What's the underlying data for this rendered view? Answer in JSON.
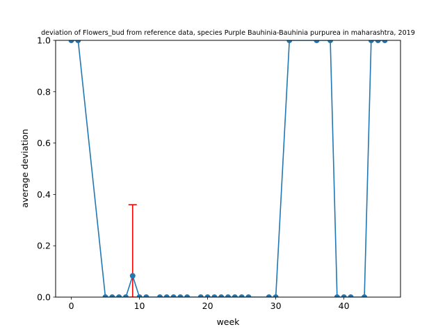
{
  "chart_data": {
    "type": "line",
    "title": "deviation of Flowers_bud from reference data, species Purple Bauhinia-Bauhinia purpurea in maharashtra, 2019",
    "xlabel": "week",
    "ylabel": "average deviation",
    "xlim": [
      -2.3,
      48.3
    ],
    "ylim": [
      0,
      1.0
    ],
    "xticks": [
      0,
      10,
      20,
      30,
      40
    ],
    "xtick_labels": [
      "0",
      "10",
      "20",
      "30",
      "40"
    ],
    "yticks": [
      0.0,
      0.2,
      0.4,
      0.6,
      0.8,
      1.0
    ],
    "ytick_labels": [
      "0.0",
      "0.2",
      "0.4",
      "0.6",
      "0.8",
      "1.0"
    ],
    "grid": false,
    "series": [
      {
        "name": "Flowers_bud",
        "color": "#1f77b4",
        "x": [
          0,
          1,
          5,
          6,
          7,
          8,
          9,
          10,
          11,
          13,
          14,
          15,
          16,
          17,
          19,
          20,
          21,
          22,
          23,
          24,
          25,
          26,
          29,
          30,
          32,
          36,
          38,
          39,
          40,
          41,
          43,
          44,
          45,
          46
        ],
        "y": [
          1,
          1,
          0,
          0,
          0,
          0,
          0.083,
          0,
          0,
          0,
          0,
          0,
          0,
          0,
          0,
          0,
          0,
          0,
          0,
          0,
          0,
          0,
          0,
          0,
          1,
          1,
          1,
          0,
          0,
          0,
          0,
          1,
          1,
          1
        ]
      }
    ],
    "error_bars": {
      "color": "#ff0000",
      "points": [
        {
          "x": 9,
          "y": 0.083,
          "low": 0,
          "high": 0.36
        }
      ]
    }
  }
}
